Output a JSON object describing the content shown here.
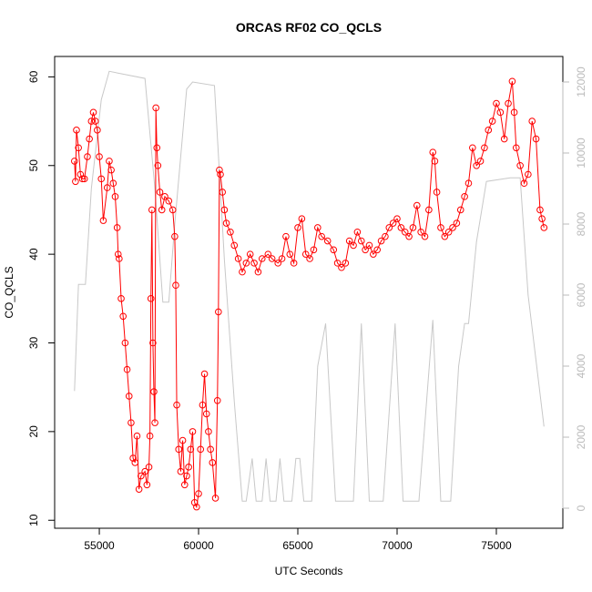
{
  "chart_data": {
    "type": "line",
    "title": "ORCAS RF02 CO_QCLS",
    "x_label": "UTC Seconds",
    "y_label": "CO_QCLS",
    "xlim": [
      52750,
      78350
    ],
    "xticks": [
      55000,
      60000,
      65000,
      70000,
      75000
    ],
    "ylim": [
      9.1,
      62.3
    ],
    "yticks": [
      10,
      20,
      30,
      40,
      50,
      60
    ],
    "y2lim": [
      -564,
      12718
    ],
    "y2ticks": [
      0,
      2000,
      4000,
      6000,
      8000,
      10000,
      12000
    ],
    "series": [
      {
        "color": "#c8c8c8",
        "axis": "y2",
        "markers": false,
        "x": [
          53750,
          53950,
          54300,
          54600,
          55100,
          55500,
          57300,
          57800,
          58200,
          58500,
          58800,
          59400,
          59700,
          60800,
          61300,
          61800,
          62200,
          62400,
          62700,
          62900,
          63200,
          63400,
          63600,
          63900,
          64100,
          64300,
          64700,
          64900,
          65100,
          65300,
          65700,
          66000,
          66400,
          66900,
          67800,
          68200,
          68600,
          69300,
          69900,
          70300,
          71100,
          71800,
          72200,
          72700,
          73100,
          73400,
          73600,
          74000,
          74500,
          75700,
          76200,
          76600,
          77400
        ],
        "values": [
          3300,
          6300,
          6300,
          9000,
          11500,
          12300,
          12100,
          9000,
          5800,
          5800,
          8000,
          11800,
          12000,
          11900,
          7000,
          3000,
          200,
          200,
          1400,
          200,
          200,
          1400,
          200,
          200,
          1400,
          200,
          200,
          1400,
          1400,
          200,
          200,
          4000,
          5200,
          200,
          200,
          5200,
          200,
          200,
          5200,
          200,
          200,
          5300,
          200,
          200,
          4000,
          5200,
          5200,
          7500,
          9200,
          9300,
          9300,
          6000,
          2300
        ]
      },
      {
        "color": "#ff0000",
        "axis": "y",
        "markers": true,
        "x": [
          53750,
          53800,
          53850,
          53950,
          54050,
          54150,
          54250,
          54400,
          54500,
          54600,
          54700,
          54800,
          54900,
          55000,
          55100,
          55200,
          55400,
          55500,
          55600,
          55700,
          55800,
          55900,
          55950,
          56000,
          56100,
          56200,
          56300,
          56400,
          56500,
          56600,
          56700,
          56800,
          56900,
          57000,
          57100,
          57300,
          57400,
          57500,
          57550,
          57600,
          57650,
          57700,
          57750,
          57800,
          57850,
          57900,
          57950,
          58050,
          58150,
          58300,
          58500,
          58700,
          58800,
          58850,
          58900,
          59000,
          59100,
          59200,
          59300,
          59400,
          59500,
          59600,
          59700,
          59800,
          59900,
          60000,
          60100,
          60200,
          60300,
          60400,
          60500,
          60600,
          60700,
          60850,
          60950,
          61000,
          61050,
          61100,
          61200,
          61300,
          61400,
          61600,
          61800,
          62000,
          62200,
          62400,
          62600,
          62800,
          63000,
          63200,
          63500,
          63700,
          64000,
          64200,
          64400,
          64600,
          64800,
          65000,
          65200,
          65400,
          65600,
          65800,
          66000,
          66200,
          66500,
          66800,
          67000,
          67200,
          67400,
          67600,
          67800,
          68000,
          68200,
          68400,
          68600,
          68800,
          69000,
          69200,
          69400,
          69600,
          69800,
          70000,
          70200,
          70400,
          70600,
          70800,
          71000,
          71200,
          71400,
          71600,
          71800,
          71900,
          72000,
          72200,
          72400,
          72600,
          72800,
          73000,
          73200,
          73400,
          73600,
          73800,
          74000,
          74200,
          74400,
          74600,
          74800,
          75000,
          75200,
          75400,
          75600,
          75800,
          75900,
          76000,
          76200,
          76400,
          76600,
          76800,
          77000,
          77200,
          77300,
          77400
        ],
        "values": [
          50.5,
          48.2,
          54,
          52,
          49,
          48.5,
          48.5,
          51,
          53,
          55,
          56,
          55,
          54,
          51,
          48.5,
          43.8,
          47.5,
          50.5,
          49.5,
          48,
          46.5,
          43,
          40,
          39.5,
          35,
          33,
          30,
          27,
          24,
          21,
          17,
          16.5,
          19.5,
          13.5,
          15,
          15.5,
          14,
          16,
          19.5,
          35,
          45,
          30,
          24.5,
          21,
          56.5,
          52,
          50,
          47,
          45,
          46.5,
          46,
          45,
          42,
          36.5,
          23,
          18,
          15.5,
          19,
          14,
          15,
          16,
          18,
          20,
          12,
          11.5,
          13,
          18,
          23,
          26.5,
          22,
          20,
          18,
          16.5,
          12.5,
          23.5,
          33.5,
          49.5,
          49,
          47,
          45,
          43.5,
          42.5,
          41,
          39.5,
          38,
          39,
          40,
          39,
          38,
          39.5,
          40,
          39.5,
          39,
          39.5,
          42,
          40,
          39,
          43,
          44,
          40,
          39.5,
          40.5,
          43,
          42,
          41.5,
          40.5,
          39,
          38.5,
          39,
          41.5,
          41,
          42.5,
          41.5,
          40.5,
          41,
          40,
          40.5,
          41.5,
          42,
          43,
          43.5,
          44,
          43,
          42.5,
          42,
          43,
          45.5,
          42.5,
          42,
          45,
          51.5,
          50.5,
          47,
          43,
          42,
          42.5,
          43,
          43.5,
          45,
          46.5,
          48,
          52,
          50,
          50.5,
          52,
          54,
          55,
          57,
          56,
          53,
          57,
          59.5,
          56,
          52,
          50,
          48,
          49,
          55,
          53,
          45,
          44,
          43
        ]
      }
    ]
  }
}
